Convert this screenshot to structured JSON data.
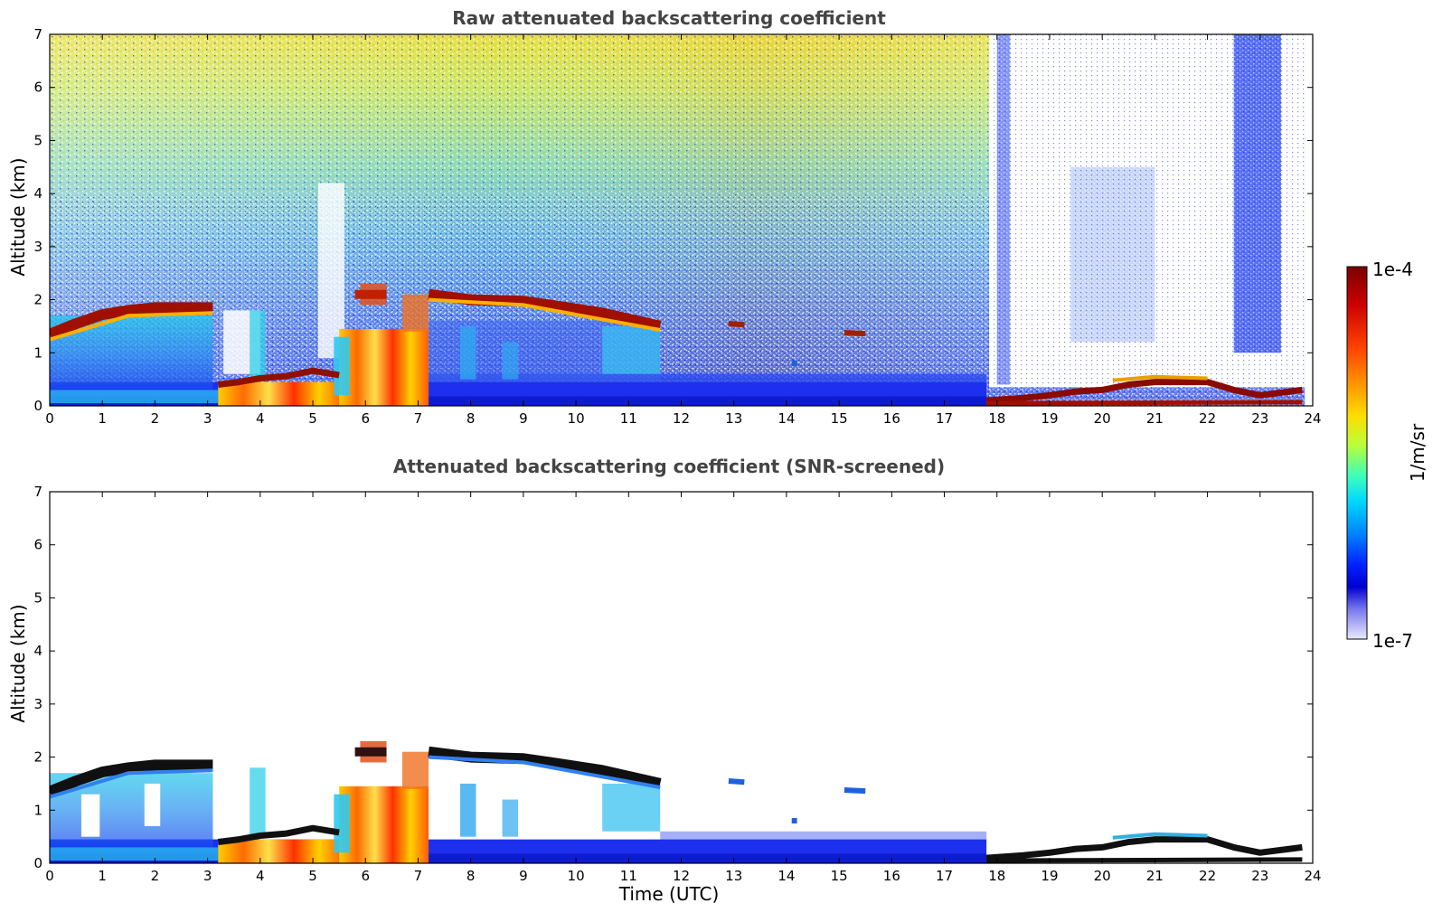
{
  "chart_data": [
    {
      "type": "heatmap",
      "title": "Raw attenuated backscattering coefficient",
      "xlabel": "",
      "ylabel": "Altitude (km)",
      "xlim": [
        0,
        24
      ],
      "ylim": [
        0,
        7
      ],
      "xticks": [
        "0",
        "1",
        "2",
        "3",
        "4",
        "5",
        "6",
        "7",
        "8",
        "9",
        "10",
        "11",
        "12",
        "13",
        "14",
        "15",
        "16",
        "17",
        "18",
        "19",
        "20",
        "21",
        "22",
        "23",
        "24"
      ],
      "yticks": [
        "0",
        "1",
        "2",
        "3",
        "4",
        "5",
        "6",
        "7"
      ],
      "features": {
        "noise_top_color": "#e6e640",
        "cloud_layer_main": [
          [
            0,
            1.35
          ],
          [
            0.5,
            1.55
          ],
          [
            1.5,
            1.8
          ],
          [
            3.1,
            1.85
          ],
          [
            3.3,
            null
          ],
          [
            7.2,
            2.1
          ],
          [
            8,
            2.0
          ],
          [
            9.5,
            1.9
          ],
          [
            10.5,
            1.75
          ],
          [
            11.6,
            1.5
          ]
        ],
        "low_cloud_layer": [
          [
            3.2,
            0.4
          ],
          [
            4,
            0.5
          ],
          [
            5,
            0.65
          ],
          [
            5.5,
            0.6
          ]
        ],
        "aerosol_boundary_top_km": 0.45,
        "night_low_cloud": [
          [
            17.8,
            0.1
          ],
          [
            19,
            0.2
          ],
          [
            20,
            0.3
          ],
          [
            21,
            0.45
          ],
          [
            22,
            0.45
          ],
          [
            23,
            0.2
          ],
          [
            23.8,
            0.3
          ]
        ]
      }
    },
    {
      "type": "heatmap",
      "title": "Attenuated backscattering coefficient (SNR-screened)",
      "xlabel": "Time (UTC)",
      "ylabel": "Altitude (km)",
      "xlim": [
        0,
        24
      ],
      "ylim": [
        0,
        7
      ],
      "xticks": [
        "0",
        "1",
        "2",
        "3",
        "4",
        "5",
        "6",
        "7",
        "8",
        "9",
        "10",
        "11",
        "12",
        "13",
        "14",
        "15",
        "16",
        "17",
        "18",
        "19",
        "20",
        "21",
        "22",
        "23",
        "24"
      ],
      "yticks": [
        "0",
        "1",
        "2",
        "3",
        "4",
        "5",
        "6",
        "7"
      ]
    }
  ],
  "colorbar": {
    "label": "1/m/sr",
    "max_label": "1e-4",
    "min_label": "1e-7",
    "colormap": [
      "#800000",
      "#d40000",
      "#ff4000",
      "#ff9a00",
      "#ffe000",
      "#b5ff40",
      "#4dffb0",
      "#00e0ff",
      "#0080ff",
      "#0020ff",
      "#0000e0",
      "#8080f0",
      "#e0e0ff"
    ]
  }
}
